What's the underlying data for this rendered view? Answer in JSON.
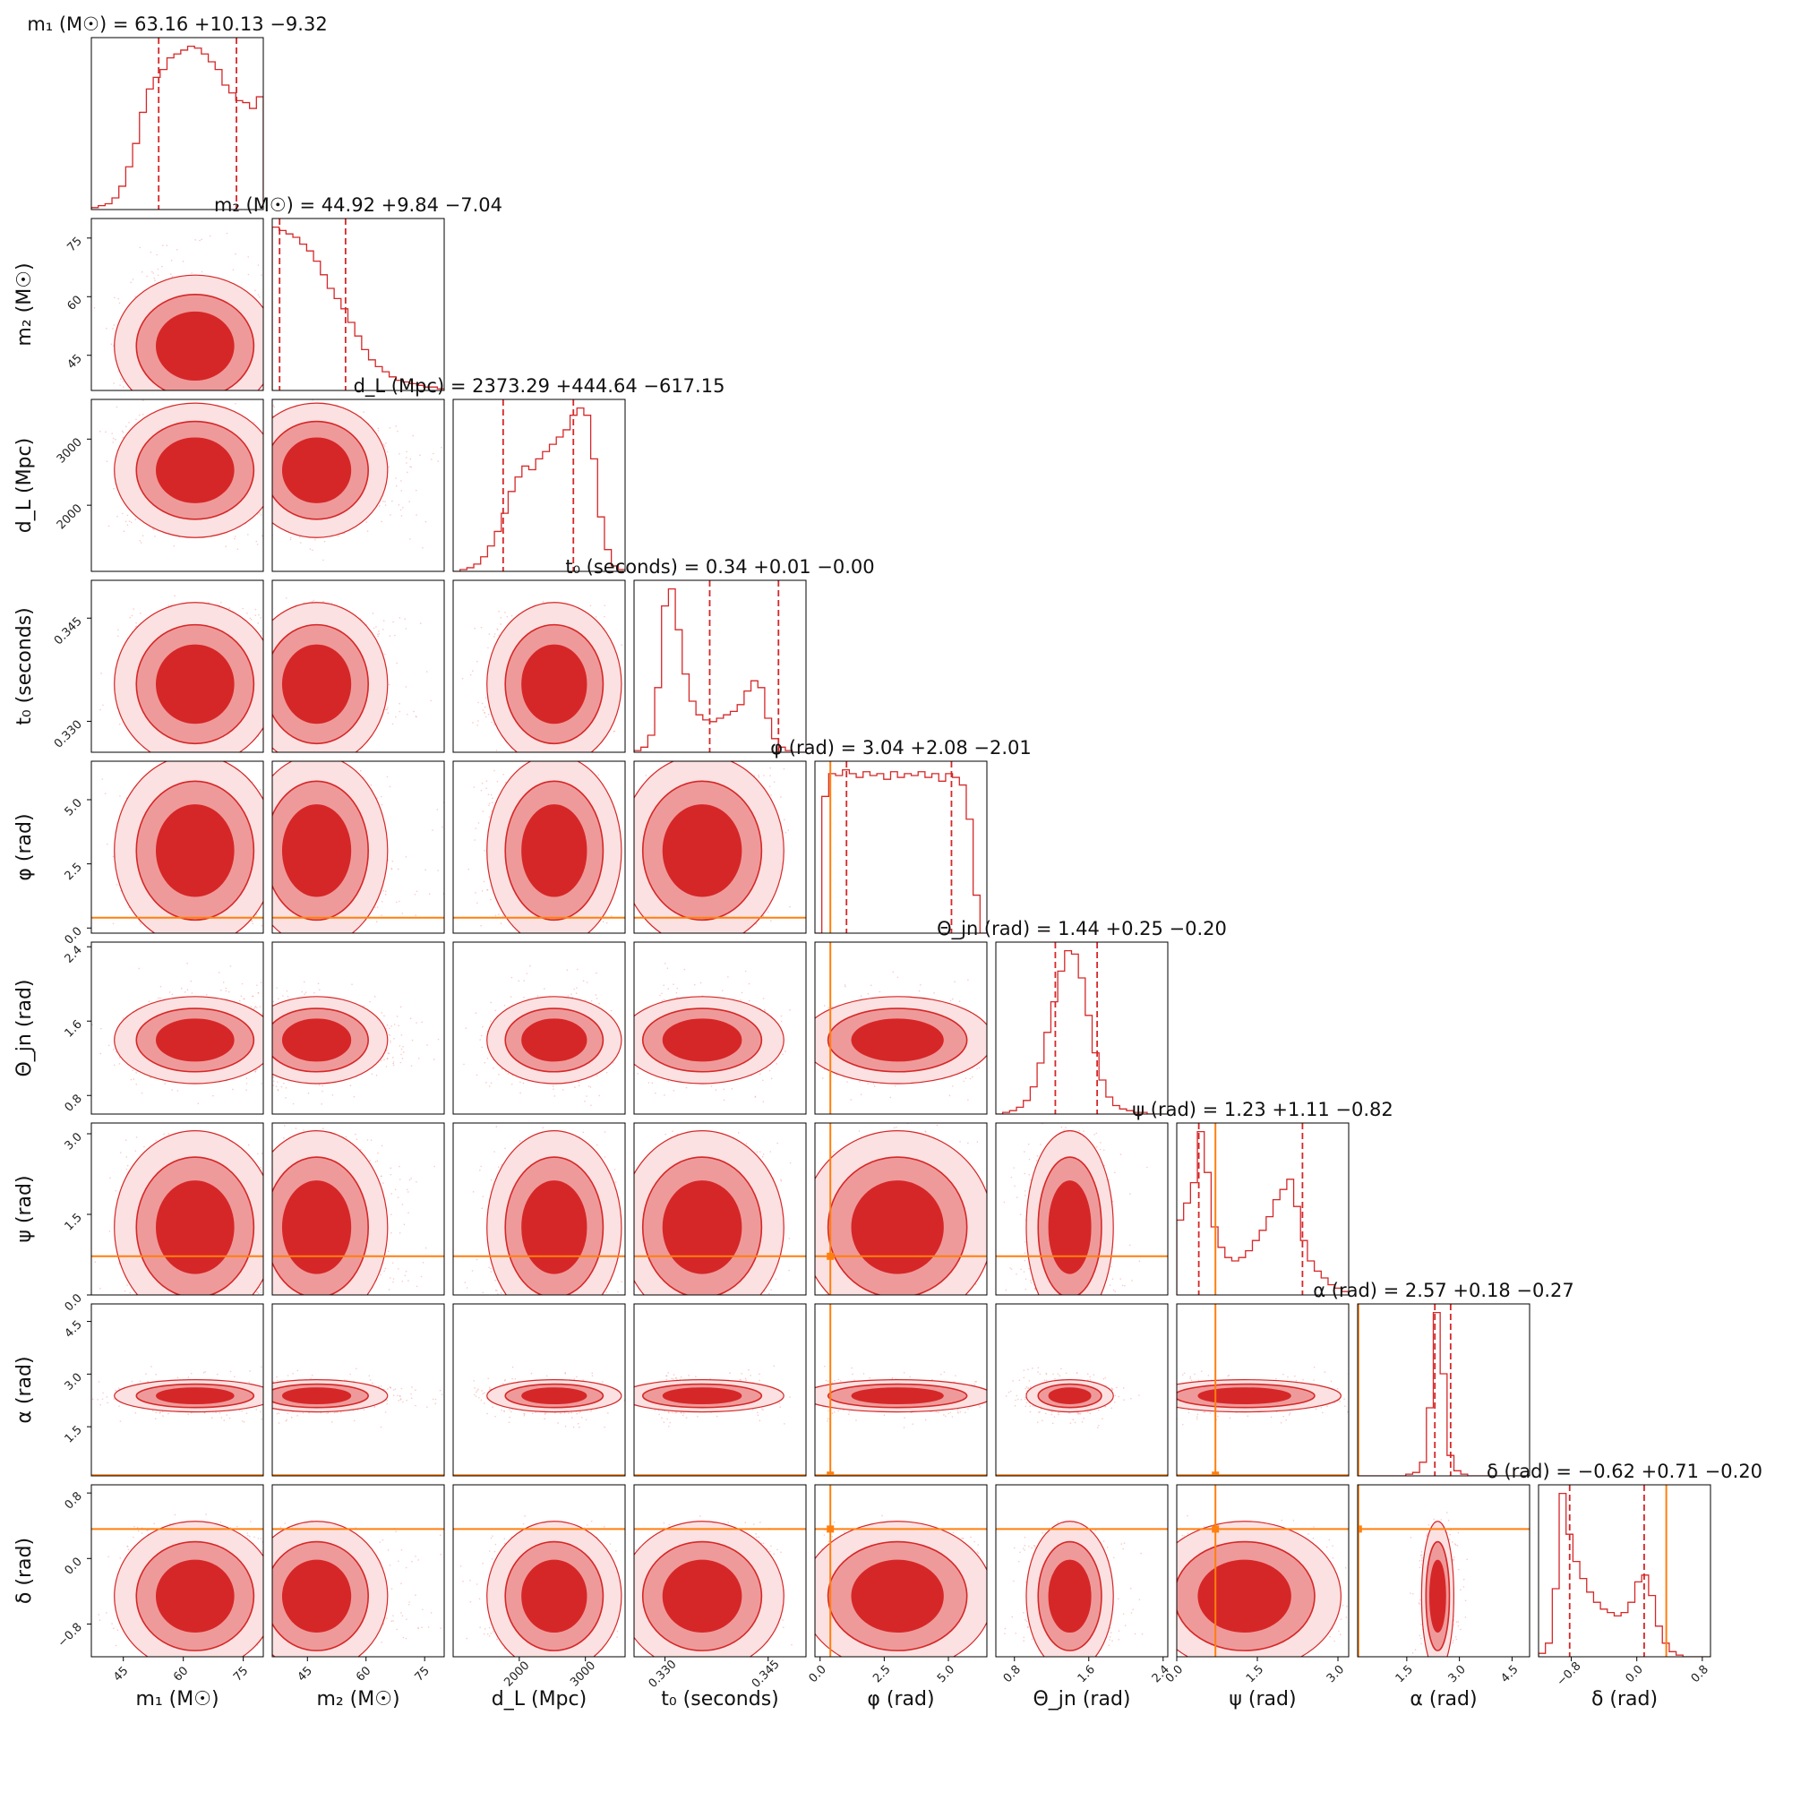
{
  "chart_data": {
    "type": "corner",
    "colors": {
      "posterior": "#d62728",
      "injection": "#ff7f0e",
      "frame": "#000000"
    },
    "params": [
      {
        "name": "m1",
        "label": "m₁ (M☉)",
        "title": "m₁ (M☉) = 63.16 +10.13 −9.32",
        "median": 63.16,
        "err_plus": 10.13,
        "err_minus": 9.32,
        "range": [
          37,
          80
        ],
        "ticks": [
          45,
          60,
          75
        ],
        "tick_labels": [
          "45",
          "60",
          "75"
        ],
        "injection": null
      },
      {
        "name": "m2",
        "label": "m₂ (M☉)",
        "title": "m₂ (M☉) = 44.92 +9.84 −7.04",
        "median": 44.92,
        "err_plus": 9.84,
        "err_minus": 7.04,
        "range": [
          36,
          80
        ],
        "ticks": [
          45,
          60,
          75
        ],
        "tick_labels": [
          "45",
          "60",
          "75"
        ],
        "injection": null
      },
      {
        "name": "dL",
        "label": "d_L (Mpc)",
        "title": "d_L (Mpc) = 2373.29 +444.64 −617.15",
        "median": 2373.29,
        "err_plus": 444.64,
        "err_minus": 617.15,
        "range": [
          1000,
          3600
        ],
        "ticks": [
          2000,
          3000
        ],
        "tick_labels": [
          "2000",
          "3000"
        ],
        "injection": null
      },
      {
        "name": "t0",
        "label": "t₀ (seconds)",
        "title": "t₀ (seconds) = 0.34 +0.01 −0.00",
        "median": 0.3365,
        "err_plus": 0.01,
        "err_minus": 0.0,
        "range": [
          0.3255,
          0.3505
        ],
        "ticks": [
          0.33,
          0.345
        ],
        "tick_labels": [
          "0.330",
          "0.345"
        ],
        "injection": null
      },
      {
        "name": "phi",
        "label": "φ (rad)",
        "title": "φ (rad) = 3.04 +2.08 −2.01",
        "median": 3.04,
        "err_plus": 2.08,
        "err_minus": 2.01,
        "range": [
          -0.2,
          6.5
        ],
        "ticks": [
          0.0,
          2.5,
          5.0
        ],
        "tick_labels": [
          "0.0",
          "2.5",
          "5.0"
        ],
        "injection": 0.4
      },
      {
        "name": "theta_jn",
        "label": "Θ_jn (rad)",
        "title": "Θ_jn (rad) = 1.44 +0.25 −0.20",
        "median": 1.44,
        "err_plus": 0.25,
        "err_minus": 0.2,
        "range": [
          0.6,
          2.45
        ],
        "ticks": [
          0.8,
          1.6,
          2.4
        ],
        "tick_labels": [
          "0.8",
          "1.6",
          "2.4"
        ],
        "injection": null
      },
      {
        "name": "psi",
        "label": "ψ (rad)",
        "title": "ψ (rad) = 1.23 +1.11 −0.82",
        "median": 1.23,
        "err_plus": 1.11,
        "err_minus": 0.82,
        "range": [
          0.0,
          3.2
        ],
        "ticks": [
          0.0,
          1.5,
          3.0
        ],
        "tick_labels": [
          "0.0",
          "1.5",
          "3.0"
        ],
        "injection": 0.72
      },
      {
        "name": "alpha",
        "label": "α (rad)",
        "title": "α (rad) = 2.57 +0.18 −0.27",
        "median": 2.57,
        "err_plus": 0.18,
        "err_minus": 0.27,
        "range": [
          0.1,
          5.0
        ],
        "ticks": [
          1.5,
          3.0,
          4.5
        ],
        "tick_labels": [
          "1.5",
          "3.0",
          "4.5"
        ],
        "injection": 0.12
      },
      {
        "name": "delta",
        "label": "δ (rad)",
        "title": "δ (rad) = −0.62 +0.71 −0.20",
        "median": -0.62,
        "err_plus": 0.71,
        "err_minus": 0.2,
        "range": [
          -1.2,
          0.9
        ],
        "ticks": [
          -0.8,
          0.0,
          0.8
        ],
        "tick_labels": [
          "−0.8",
          "0.0",
          "0.8"
        ],
        "injection": 0.36
      }
    ],
    "histograms": [
      {
        "param": "m1",
        "weights": [
          1,
          2,
          3,
          6,
          12,
          22,
          34,
          50,
          62,
          68,
          72,
          78,
          80,
          82,
          84,
          83,
          80,
          76,
          72,
          64,
          60,
          56,
          55,
          52,
          58
        ]
      },
      {
        "param": "m2",
        "weights": [
          96,
          94,
          92,
          90,
          86,
          82,
          76,
          68,
          60,
          54,
          48,
          40,
          32,
          24,
          18,
          14,
          11,
          8,
          6,
          5,
          4,
          3,
          2,
          2,
          1
        ]
      },
      {
        "param": "dL",
        "weights": [
          0,
          1,
          2,
          4,
          8,
          14,
          22,
          32,
          44,
          52,
          58,
          56,
          62,
          66,
          70,
          74,
          78,
          86,
          90,
          86,
          62,
          30,
          12,
          3,
          1
        ]
      },
      {
        "param": "t0",
        "weights": [
          1,
          3,
          10,
          38,
          86,
          96,
          72,
          46,
          30,
          22,
          19,
          18,
          20,
          22,
          24,
          28,
          36,
          42,
          38,
          20,
          8,
          3,
          1,
          0,
          0
        ]
      },
      {
        "param": "phi",
        "weights": [
          0,
          72,
          84,
          83,
          86,
          84,
          82,
          85,
          83,
          84,
          81,
          85,
          82,
          84,
          83,
          85,
          82,
          84,
          80,
          84,
          82,
          78,
          60,
          20,
          0
        ]
      },
      {
        "param": "theta_jn",
        "weights": [
          0,
          1,
          2,
          4,
          8,
          16,
          30,
          48,
          66,
          84,
          96,
          94,
          80,
          58,
          36,
          20,
          10,
          5,
          3,
          2,
          1,
          1,
          0,
          0,
          0
        ]
      },
      {
        "param": "psi",
        "weights": [
          44,
          54,
          66,
          96,
          72,
          40,
          28,
          22,
          20,
          22,
          26,
          32,
          38,
          46,
          56,
          62,
          68,
          52,
          32,
          20,
          14,
          10,
          6,
          4,
          2
        ]
      },
      {
        "param": "alpha",
        "weights": [
          0,
          0,
          0,
          0,
          0,
          0,
          0,
          1,
          2,
          8,
          40,
          96,
          60,
          12,
          3,
          1,
          0,
          0,
          0,
          0,
          0,
          0,
          0,
          0,
          0
        ]
      },
      {
        "param": "delta",
        "weights": [
          2,
          8,
          40,
          96,
          72,
          56,
          46,
          38,
          32,
          28,
          26,
          24,
          26,
          32,
          44,
          48,
          36,
          18,
          8,
          3,
          1,
          0,
          0,
          0,
          0
        ]
      }
    ]
  }
}
